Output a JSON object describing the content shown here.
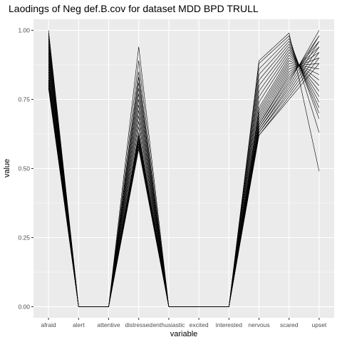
{
  "chart_data": {
    "type": "line",
    "title": "Laodings of Neg def.B.cov for dataset MDD BPD TRULL",
    "xlabel": "variable",
    "ylabel": "value",
    "categories": [
      "afraid",
      "alert",
      "attentive",
      "distressed",
      "enthusiastic",
      "excited",
      "interested",
      "nervous",
      "scared",
      "upset"
    ],
    "ylim": [
      -0.04,
      1.04
    ],
    "yticks": [
      0.0,
      0.25,
      0.5,
      0.75,
      1.0
    ],
    "ytick_labels": [
      "0.00",
      "0.25",
      "0.50",
      "0.75",
      "1.00"
    ],
    "grid": true,
    "legend": "none",
    "line_color": "#000000",
    "panel_background": "#ebebeb",
    "grid_color": "#ffffff",
    "series": [
      {
        "values": [
          1.0,
          0.0,
          0.0,
          0.94,
          0.0,
          0.0,
          0.0,
          0.89,
          0.99,
          0.49
        ]
      },
      {
        "values": [
          0.99,
          0.0,
          0.0,
          0.89,
          0.0,
          0.0,
          0.0,
          0.88,
          0.98,
          0.63
        ]
      },
      {
        "values": [
          0.98,
          0.0,
          0.0,
          0.85,
          0.0,
          0.0,
          0.0,
          0.86,
          0.97,
          0.68
        ]
      },
      {
        "values": [
          0.97,
          0.0,
          0.0,
          0.83,
          0.0,
          0.0,
          0.0,
          0.84,
          0.96,
          0.7
        ]
      },
      {
        "values": [
          0.96,
          0.0,
          0.0,
          0.81,
          0.0,
          0.0,
          0.0,
          0.82,
          0.95,
          0.72
        ]
      },
      {
        "values": [
          0.95,
          0.0,
          0.0,
          0.79,
          0.0,
          0.0,
          0.0,
          0.8,
          0.94,
          0.74
        ]
      },
      {
        "values": [
          0.94,
          0.0,
          0.0,
          0.77,
          0.0,
          0.0,
          0.0,
          0.78,
          0.93,
          0.76
        ]
      },
      {
        "values": [
          0.93,
          0.0,
          0.0,
          0.75,
          0.0,
          0.0,
          0.0,
          0.76,
          0.92,
          0.78
        ]
      },
      {
        "values": [
          0.92,
          0.0,
          0.0,
          0.73,
          0.0,
          0.0,
          0.0,
          0.74,
          0.91,
          0.8
        ]
      },
      {
        "values": [
          0.91,
          0.0,
          0.0,
          0.71,
          0.0,
          0.0,
          0.0,
          0.72,
          0.9,
          0.82
        ]
      },
      {
        "values": [
          0.9,
          0.0,
          0.0,
          0.69,
          0.0,
          0.0,
          0.0,
          0.71,
          0.89,
          0.84
        ]
      },
      {
        "values": [
          0.89,
          0.0,
          0.0,
          0.67,
          0.0,
          0.0,
          0.0,
          0.7,
          0.88,
          0.86
        ]
      },
      {
        "values": [
          0.88,
          0.0,
          0.0,
          0.65,
          0.0,
          0.0,
          0.0,
          0.69,
          0.87,
          0.88
        ]
      },
      {
        "values": [
          0.87,
          0.0,
          0.0,
          0.63,
          0.0,
          0.0,
          0.0,
          0.68,
          0.86,
          0.9
        ]
      },
      {
        "values": [
          0.86,
          0.0,
          0.0,
          0.62,
          0.0,
          0.0,
          0.0,
          0.67,
          0.85,
          0.92
        ]
      },
      {
        "values": [
          0.85,
          0.0,
          0.0,
          0.61,
          0.0,
          0.0,
          0.0,
          0.66,
          0.84,
          0.94
        ]
      },
      {
        "values": [
          0.84,
          0.0,
          0.0,
          0.6,
          0.0,
          0.0,
          0.0,
          0.66,
          0.83,
          0.96
        ]
      },
      {
        "values": [
          0.83,
          0.0,
          0.0,
          0.59,
          0.0,
          0.0,
          0.0,
          0.65,
          0.82,
          0.98
        ]
      },
      {
        "values": [
          0.82,
          0.0,
          0.0,
          0.58,
          0.0,
          0.0,
          0.0,
          0.65,
          0.81,
          1.0
        ]
      },
      {
        "values": [
          0.81,
          0.0,
          0.0,
          0.57,
          0.0,
          0.0,
          0.0,
          0.64,
          0.8,
          0.98
        ]
      },
      {
        "values": [
          0.8,
          0.0,
          0.0,
          0.58,
          0.0,
          0.0,
          0.0,
          0.64,
          0.79,
          0.96
        ]
      },
      {
        "values": [
          0.79,
          0.0,
          0.0,
          0.59,
          0.0,
          0.0,
          0.0,
          0.63,
          0.78,
          0.94
        ]
      },
      {
        "values": [
          0.8,
          0.0,
          0.0,
          0.6,
          0.0,
          0.0,
          0.0,
          0.63,
          0.77,
          0.92
        ]
      },
      {
        "values": [
          0.81,
          0.0,
          0.0,
          0.61,
          0.0,
          0.0,
          0.0,
          0.62,
          0.76,
          0.9
        ]
      },
      {
        "values": [
          0.82,
          0.0,
          0.0,
          0.62,
          0.0,
          0.0,
          0.0,
          0.62,
          0.75,
          0.88
        ]
      }
    ]
  }
}
